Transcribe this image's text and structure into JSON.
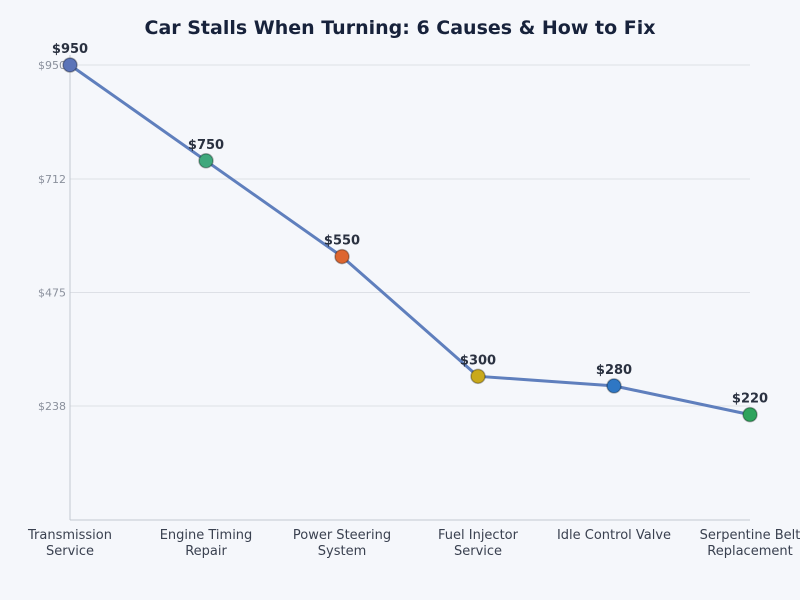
{
  "chart_data": {
    "type": "line",
    "title": "Car Stalls When Turning: 6 Causes & How to Fix",
    "categories": [
      [
        "Transmission",
        "Service"
      ],
      [
        "Engine Timing",
        "Repair"
      ],
      [
        "Power Steering",
        "System"
      ],
      [
        "Fuel Injector",
        "Service"
      ],
      [
        "Idle Control Valve"
      ],
      [
        "Serpentine Belt",
        "Replacement"
      ]
    ],
    "values": [
      950,
      750,
      550,
      300,
      280,
      220
    ],
    "data_labels": [
      "$950",
      "$750",
      "$550",
      "$300",
      "$280",
      "$220"
    ],
    "yticks": [
      238,
      475,
      712,
      950
    ],
    "ytick_labels": [
      "$238",
      "$475",
      "$712",
      "$950"
    ],
    "ylim": [
      0,
      950
    ],
    "grid": "horizontal",
    "line_color": "#5f7fbd",
    "point_colors": [
      "#5b74b8",
      "#3fa87c",
      "#dd6630",
      "#c9a91c",
      "#2f77c4",
      "#2ea35c"
    ]
  }
}
